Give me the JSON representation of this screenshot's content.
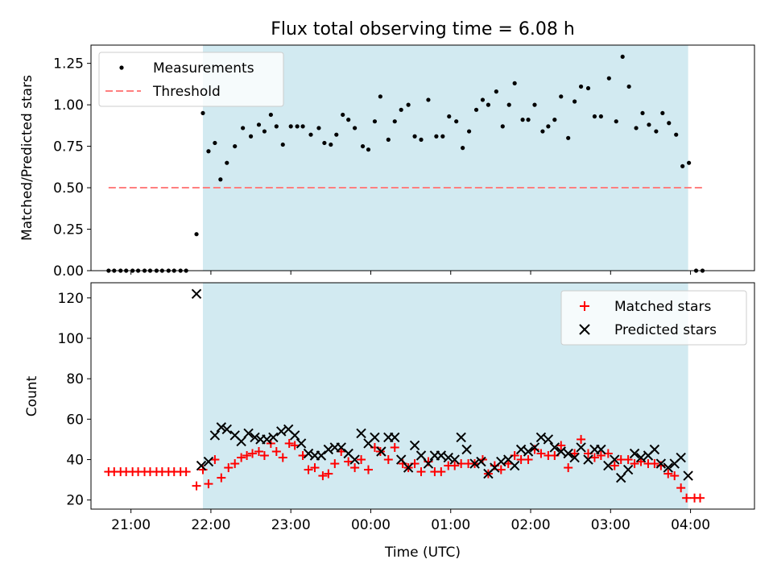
{
  "title": "Flux total observing time = 6.08 h",
  "colors": {
    "shade": "#add8e6",
    "matched": "#ff0000",
    "predicted": "#000000",
    "threshold": "#ff7f7f",
    "measurement": "#000000"
  },
  "chart_data": [
    {
      "type": "scatter",
      "ylabel": "Matched/Predicted stars",
      "ylim": [
        0.0,
        1.36
      ],
      "y_ticks": [
        "0.00",
        "0.25",
        "0.50",
        "0.75",
        "1.00",
        "1.25"
      ],
      "y_tick_values": [
        0.0,
        0.25,
        0.5,
        0.75,
        1.0,
        1.25
      ],
      "xlim": [
        20.5,
        28.8
      ],
      "shaded_region": [
        21.9,
        27.97
      ],
      "legend": {
        "placement": "top-left",
        "entries": [
          {
            "label": "Measurements",
            "marker": "dot"
          },
          {
            "label": "Threshold",
            "marker": "dashed-line"
          }
        ]
      },
      "threshold": {
        "value": 0.5,
        "x_range": [
          20.72,
          28.17
        ]
      },
      "series": [
        {
          "name": "Measurements",
          "points": [
            [
              20.72,
              0.0
            ],
            [
              20.79,
              0.0
            ],
            [
              20.87,
              0.0
            ],
            [
              20.94,
              0.0
            ],
            [
              21.02,
              0.0
            ],
            [
              21.09,
              0.0
            ],
            [
              21.17,
              0.0
            ],
            [
              21.24,
              0.0
            ],
            [
              21.32,
              0.0
            ],
            [
              21.39,
              0.0
            ],
            [
              21.47,
              0.0
            ],
            [
              21.54,
              0.0
            ],
            [
              21.62,
              0.0
            ],
            [
              21.69,
              0.0
            ],
            [
              21.82,
              0.22
            ],
            [
              21.9,
              0.95
            ],
            [
              21.97,
              0.72
            ],
            [
              22.05,
              0.77
            ],
            [
              22.12,
              0.55
            ],
            [
              22.2,
              0.65
            ],
            [
              22.3,
              0.75
            ],
            [
              22.4,
              0.86
            ],
            [
              22.5,
              0.81
            ],
            [
              22.6,
              0.88
            ],
            [
              22.67,
              0.84
            ],
            [
              22.75,
              0.94
            ],
            [
              22.82,
              0.87
            ],
            [
              22.9,
              0.76
            ],
            [
              23.0,
              0.87
            ],
            [
              23.08,
              0.87
            ],
            [
              23.15,
              0.87
            ],
            [
              23.25,
              0.82
            ],
            [
              23.35,
              0.86
            ],
            [
              23.42,
              0.77
            ],
            [
              23.5,
              0.76
            ],
            [
              23.57,
              0.82
            ],
            [
              23.65,
              0.94
            ],
            [
              23.72,
              0.91
            ],
            [
              23.8,
              0.86
            ],
            [
              23.9,
              0.75
            ],
            [
              23.97,
              0.73
            ],
            [
              24.05,
              0.9
            ],
            [
              24.12,
              1.05
            ],
            [
              24.22,
              0.79
            ],
            [
              24.3,
              0.9
            ],
            [
              24.38,
              0.97
            ],
            [
              24.47,
              1.0
            ],
            [
              24.55,
              0.81
            ],
            [
              24.63,
              0.79
            ],
            [
              24.72,
              1.03
            ],
            [
              24.82,
              0.81
            ],
            [
              24.9,
              0.81
            ],
            [
              24.98,
              0.93
            ],
            [
              25.07,
              0.9
            ],
            [
              25.15,
              0.74
            ],
            [
              25.23,
              0.84
            ],
            [
              25.32,
              0.97
            ],
            [
              25.4,
              1.03
            ],
            [
              25.47,
              1.0
            ],
            [
              25.57,
              1.08
            ],
            [
              25.65,
              0.87
            ],
            [
              25.73,
              1.0
            ],
            [
              25.8,
              1.13
            ],
            [
              25.9,
              0.91
            ],
            [
              25.97,
              0.91
            ],
            [
              26.05,
              1.0
            ],
            [
              26.15,
              0.84
            ],
            [
              26.22,
              0.87
            ],
            [
              26.3,
              0.91
            ],
            [
              26.38,
              1.05
            ],
            [
              26.47,
              0.8
            ],
            [
              26.55,
              1.02
            ],
            [
              26.63,
              1.11
            ],
            [
              26.72,
              1.1
            ],
            [
              26.8,
              0.93
            ],
            [
              26.88,
              0.93
            ],
            [
              26.98,
              1.16
            ],
            [
              27.07,
              0.9
            ],
            [
              27.15,
              1.29
            ],
            [
              27.23,
              1.11
            ],
            [
              27.32,
              0.86
            ],
            [
              27.4,
              0.95
            ],
            [
              27.48,
              0.88
            ],
            [
              27.57,
              0.84
            ],
            [
              27.65,
              0.95
            ],
            [
              27.73,
              0.89
            ],
            [
              27.82,
              0.82
            ],
            [
              27.9,
              0.63
            ],
            [
              27.98,
              0.65
            ],
            [
              28.07,
              0.0
            ],
            [
              28.15,
              0.0
            ]
          ]
        }
      ]
    },
    {
      "type": "scatter",
      "ylabel": "Count",
      "xlabel": "Time (UTC)",
      "ylim": [
        15.5,
        127.5
      ],
      "y_ticks": [
        "20",
        "40",
        "60",
        "80",
        "100",
        "120"
      ],
      "y_tick_values": [
        20,
        40,
        60,
        80,
        100,
        120
      ],
      "xlim": [
        20.5,
        28.8
      ],
      "x_ticks": [
        "21:00",
        "22:00",
        "23:00",
        "00:00",
        "01:00",
        "02:00",
        "03:00",
        "04:00"
      ],
      "x_tick_values": [
        21,
        22,
        23,
        24,
        25,
        26,
        27,
        28
      ],
      "shaded_region": [
        21.9,
        27.97
      ],
      "legend": {
        "placement": "top-right",
        "entries": [
          {
            "label": "Matched stars",
            "marker": "plus"
          },
          {
            "label": "Predicted stars",
            "marker": "x"
          }
        ]
      },
      "series": [
        {
          "name": "Matched stars",
          "points": [
            [
              20.72,
              34
            ],
            [
              20.79,
              34
            ],
            [
              20.87,
              34
            ],
            [
              20.94,
              34
            ],
            [
              21.02,
              34
            ],
            [
              21.09,
              34
            ],
            [
              21.17,
              34
            ],
            [
              21.24,
              34
            ],
            [
              21.32,
              34
            ],
            [
              21.39,
              34
            ],
            [
              21.47,
              34
            ],
            [
              21.54,
              34
            ],
            [
              21.62,
              34
            ],
            [
              21.69,
              34
            ],
            [
              21.82,
              27
            ],
            [
              21.9,
              35
            ],
            [
              21.97,
              28
            ],
            [
              22.05,
              40
            ],
            [
              22.13,
              31
            ],
            [
              22.22,
              36
            ],
            [
              22.3,
              38
            ],
            [
              22.38,
              41
            ],
            [
              22.45,
              42
            ],
            [
              22.52,
              43
            ],
            [
              22.6,
              44
            ],
            [
              22.67,
              42
            ],
            [
              22.75,
              48
            ],
            [
              22.82,
              44
            ],
            [
              22.9,
              41
            ],
            [
              22.98,
              48
            ],
            [
              23.05,
              47
            ],
            [
              23.15,
              42
            ],
            [
              23.22,
              35
            ],
            [
              23.3,
              36
            ],
            [
              23.4,
              32
            ],
            [
              23.47,
              33
            ],
            [
              23.55,
              38
            ],
            [
              23.63,
              44
            ],
            [
              23.72,
              39
            ],
            [
              23.8,
              36
            ],
            [
              23.88,
              40
            ],
            [
              23.97,
              35
            ],
            [
              24.05,
              46
            ],
            [
              24.12,
              44
            ],
            [
              24.22,
              40
            ],
            [
              24.3,
              46
            ],
            [
              24.4,
              38
            ],
            [
              24.47,
              36
            ],
            [
              24.55,
              38
            ],
            [
              24.63,
              34
            ],
            [
              24.72,
              39
            ],
            [
              24.8,
              34
            ],
            [
              24.88,
              34
            ],
            [
              24.97,
              37
            ],
            [
              25.05,
              37
            ],
            [
              25.13,
              38
            ],
            [
              25.22,
              38
            ],
            [
              25.3,
              38
            ],
            [
              25.4,
              40
            ],
            [
              25.47,
              33
            ],
            [
              25.55,
              37
            ],
            [
              25.63,
              35
            ],
            [
              25.72,
              38
            ],
            [
              25.8,
              42
            ],
            [
              25.88,
              40
            ],
            [
              25.97,
              40
            ],
            [
              26.05,
              45
            ],
            [
              26.13,
              43
            ],
            [
              26.22,
              42
            ],
            [
              26.3,
              42
            ],
            [
              26.38,
              47
            ],
            [
              26.47,
              36
            ],
            [
              26.55,
              43
            ],
            [
              26.63,
              50
            ],
            [
              26.72,
              43
            ],
            [
              26.8,
              41
            ],
            [
              26.88,
              42
            ],
            [
              26.97,
              43
            ],
            [
              27.05,
              37
            ],
            [
              27.13,
              40
            ],
            [
              27.22,
              40
            ],
            [
              27.3,
              38
            ],
            [
              27.38,
              39
            ],
            [
              27.47,
              38
            ],
            [
              27.55,
              38
            ],
            [
              27.63,
              37
            ],
            [
              27.72,
              33
            ],
            [
              27.8,
              32
            ],
            [
              27.88,
              26
            ],
            [
              27.95,
              21
            ],
            [
              28.05,
              21
            ],
            [
              28.12,
              21
            ]
          ]
        },
        {
          "name": "Predicted stars",
          "points": [
            [
              21.82,
              122
            ],
            [
              21.88,
              37
            ],
            [
              21.97,
              39
            ],
            [
              22.05,
              52
            ],
            [
              22.13,
              56
            ],
            [
              22.2,
              55
            ],
            [
              22.3,
              52
            ],
            [
              22.38,
              49
            ],
            [
              22.47,
              53
            ],
            [
              22.55,
              51
            ],
            [
              22.62,
              50
            ],
            [
              22.7,
              50
            ],
            [
              22.78,
              51
            ],
            [
              22.88,
              54
            ],
            [
              22.97,
              55
            ],
            [
              23.05,
              52
            ],
            [
              23.13,
              48
            ],
            [
              23.22,
              43
            ],
            [
              23.3,
              42
            ],
            [
              23.38,
              42
            ],
            [
              23.47,
              45
            ],
            [
              23.55,
              46
            ],
            [
              23.63,
              46
            ],
            [
              23.72,
              43
            ],
            [
              23.8,
              40
            ],
            [
              23.88,
              53
            ],
            [
              23.97,
              48
            ],
            [
              24.05,
              51
            ],
            [
              24.13,
              44
            ],
            [
              24.22,
              51
            ],
            [
              24.3,
              51
            ],
            [
              24.38,
              40
            ],
            [
              24.47,
              36
            ],
            [
              24.55,
              47
            ],
            [
              24.63,
              42
            ],
            [
              24.72,
              38
            ],
            [
              24.8,
              42
            ],
            [
              24.88,
              42
            ],
            [
              24.97,
              41
            ],
            [
              25.05,
              40
            ],
            [
              25.13,
              51
            ],
            [
              25.2,
              45
            ],
            [
              25.3,
              38
            ],
            [
              25.38,
              39
            ],
            [
              25.47,
              33
            ],
            [
              25.55,
              36
            ],
            [
              25.63,
              39
            ],
            [
              25.72,
              40
            ],
            [
              25.8,
              37
            ],
            [
              25.88,
              45
            ],
            [
              25.97,
              44
            ],
            [
              26.05,
              46
            ],
            [
              26.13,
              51
            ],
            [
              26.22,
              50
            ],
            [
              26.3,
              46
            ],
            [
              26.38,
              44
            ],
            [
              26.47,
              43
            ],
            [
              26.55,
              41
            ],
            [
              26.63,
              46
            ],
            [
              26.72,
              40
            ],
            [
              26.8,
              45
            ],
            [
              26.88,
              45
            ],
            [
              26.97,
              37
            ],
            [
              27.05,
              40
            ],
            [
              27.13,
              31
            ],
            [
              27.22,
              35
            ],
            [
              27.3,
              43
            ],
            [
              27.38,
              41
            ],
            [
              27.47,
              42
            ],
            [
              27.55,
              45
            ],
            [
              27.63,
              38
            ],
            [
              27.72,
              36
            ],
            [
              27.8,
              38
            ],
            [
              27.88,
              41
            ],
            [
              27.97,
              32
            ]
          ]
        }
      ]
    }
  ]
}
